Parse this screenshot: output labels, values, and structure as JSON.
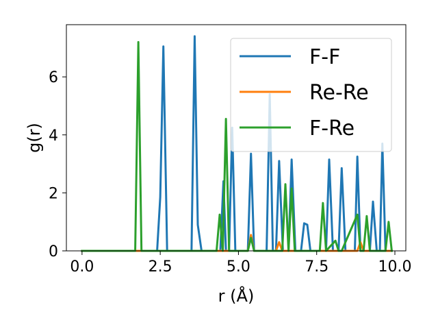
{
  "chart_data": {
    "type": "line",
    "title": "",
    "xlabel": "r (Å)",
    "ylabel": "g(r)",
    "xlim": [
      -0.5,
      10.35
    ],
    "ylim": [
      0,
      7.8
    ],
    "xticks": [
      0.0,
      2.5,
      5.0,
      7.5,
      10.0
    ],
    "xtick_labels": [
      "0.0",
      "2.5",
      "5.0",
      "7.5",
      "10.0"
    ],
    "yticks": [
      0,
      2,
      4,
      6
    ],
    "ytick_labels": [
      "0",
      "2",
      "4",
      "6"
    ],
    "grid": false,
    "legend_position": "top-right",
    "series": [
      {
        "name": "F-F",
        "color": "#1f77b4",
        "x": [
          0.0,
          2.4,
          2.5,
          2.6,
          2.72,
          3.5,
          3.6,
          3.7,
          3.82,
          4.42,
          4.52,
          4.6,
          4.7,
          4.8,
          4.9,
          5.3,
          5.4,
          5.5,
          5.9,
          6.0,
          6.1,
          6.2,
          6.3,
          6.42,
          6.6,
          6.7,
          6.82,
          7.0,
          7.1,
          7.2,
          7.3,
          7.42,
          7.8,
          7.9,
          8.02,
          8.2,
          8.3,
          8.42,
          8.72,
          8.8,
          8.9,
          9.02,
          9.2,
          9.3,
          9.42,
          9.52,
          9.6,
          9.7,
          9.9
        ],
        "values": [
          0,
          0,
          1.85,
          7.05,
          0,
          0,
          7.4,
          0.9,
          0,
          0,
          2.4,
          0,
          0,
          4.25,
          0,
          0,
          3.35,
          0,
          0,
          5.4,
          0,
          0,
          3.1,
          0,
          0,
          3.15,
          0,
          0,
          0.95,
          0.9,
          0,
          0,
          0,
          3.15,
          0,
          0,
          2.85,
          0,
          0,
          3.25,
          0,
          0,
          0,
          1.7,
          0,
          0,
          3.7,
          0,
          0
        ]
      },
      {
        "name": "Re-Re",
        "color": "#ff7f0e",
        "x": [
          0.0,
          5.3,
          5.4,
          5.5,
          6.2,
          6.3,
          6.4,
          8.8,
          8.9,
          9.0,
          9.9
        ],
        "values": [
          0,
          0,
          0.55,
          0,
          0,
          0.3,
          0,
          0,
          0.3,
          0,
          0
        ]
      },
      {
        "name": "F-Re",
        "color": "#2ca02c",
        "x": [
          0.0,
          1.7,
          1.8,
          1.9,
          4.3,
          4.4,
          4.5,
          4.6,
          4.7,
          5.3,
          5.4,
          5.5,
          6.4,
          6.5,
          6.6,
          6.7,
          6.8,
          7.6,
          7.7,
          7.8,
          8.1,
          8.2,
          8.3,
          8.8,
          8.9,
          9.0,
          9.1,
          9.2,
          9.7,
          9.8,
          9.9
        ],
        "values": [
          0,
          0,
          7.2,
          0,
          0,
          1.25,
          0,
          4.55,
          0,
          0,
          0.45,
          0,
          0,
          2.3,
          0,
          2.15,
          0,
          0,
          1.65,
          0,
          0.35,
          0,
          0,
          1.25,
          0,
          0,
          1.2,
          0,
          0,
          1.0,
          0
        ]
      }
    ]
  }
}
